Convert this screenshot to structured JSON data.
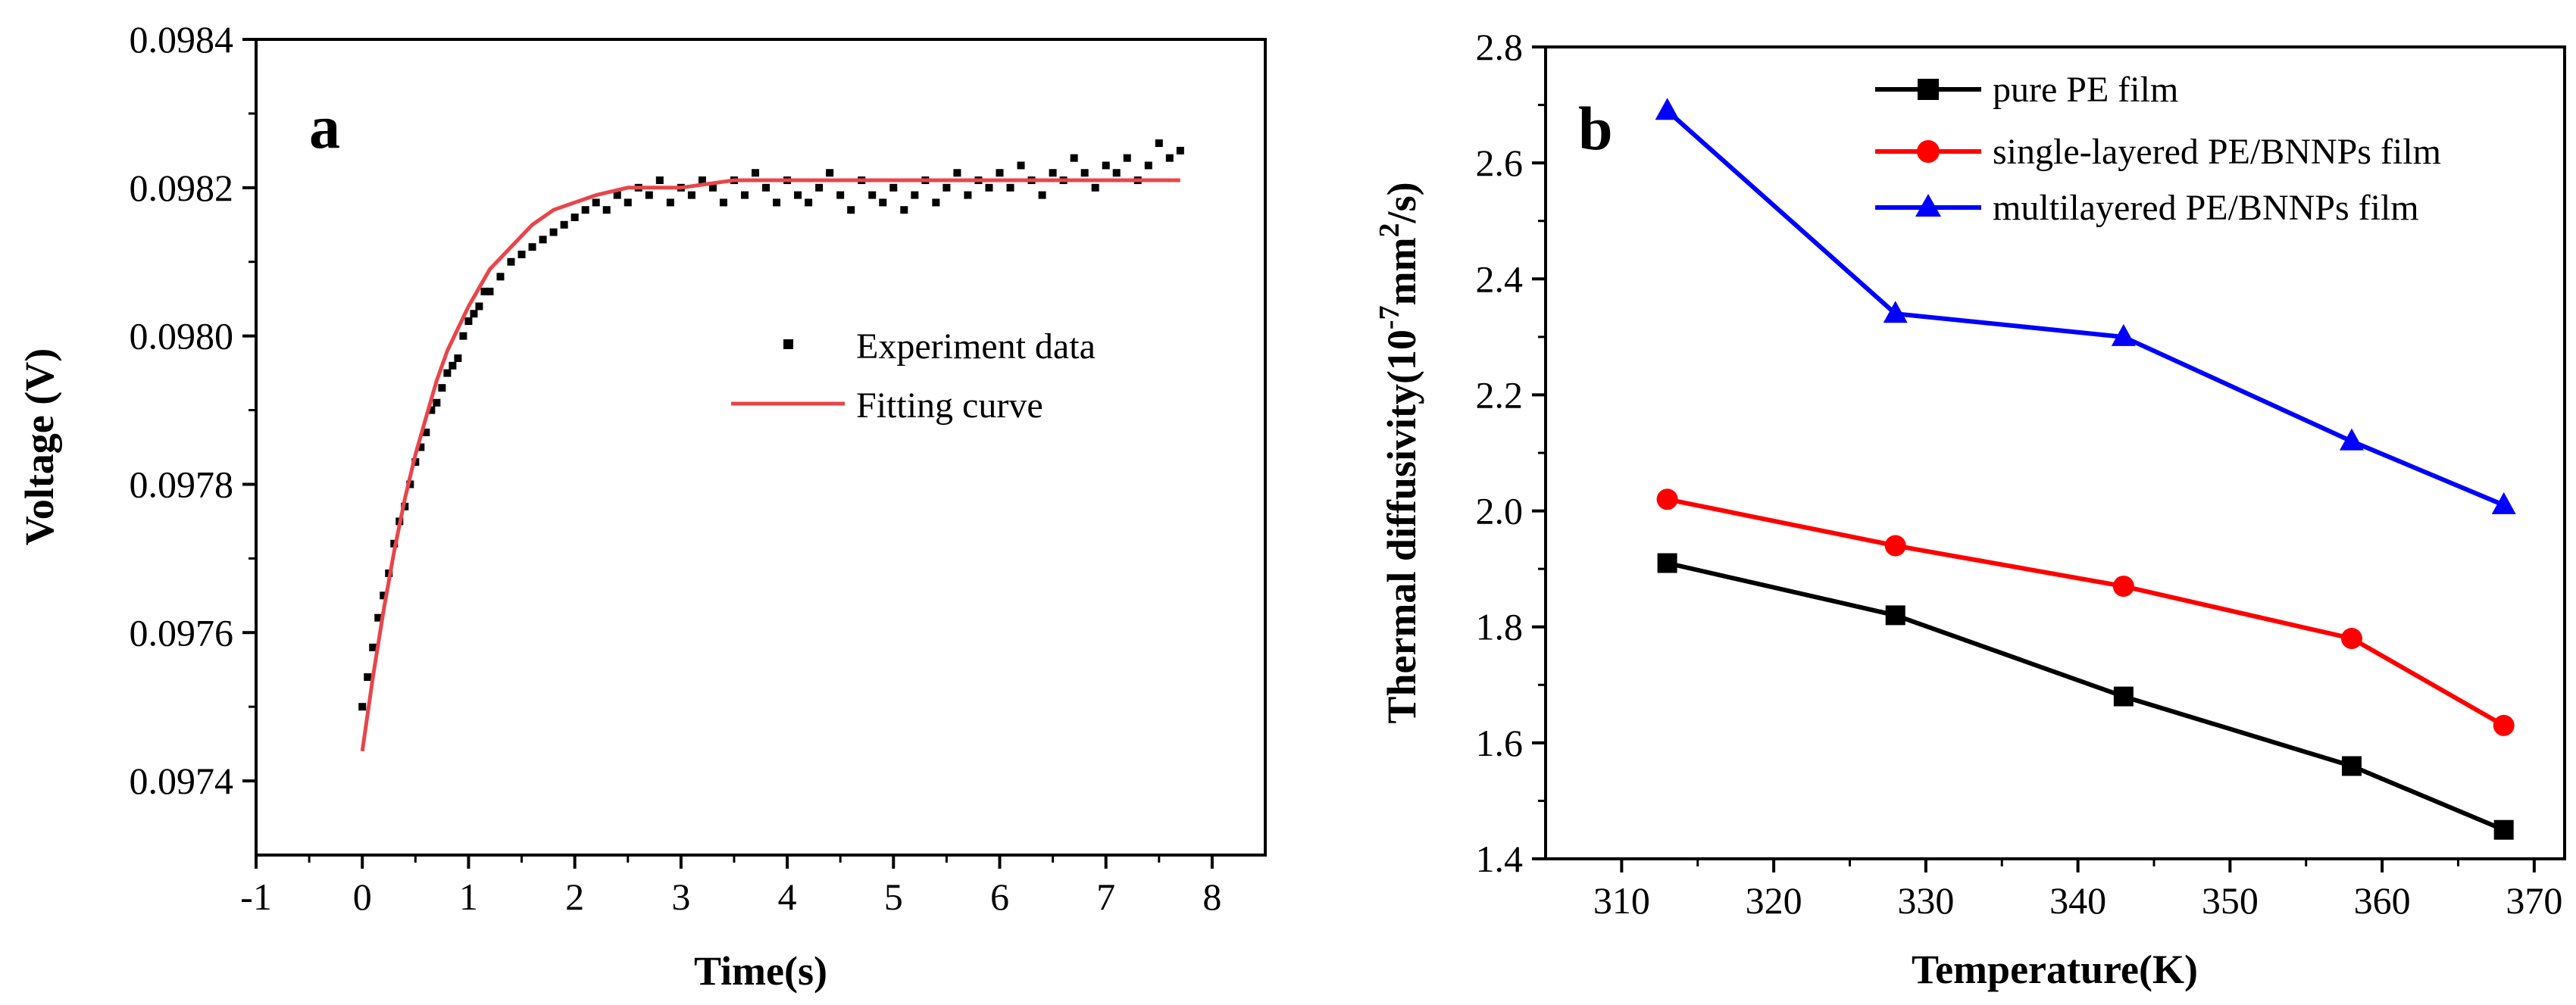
{
  "figure": {
    "panel_a_label": "a",
    "panel_b_label": "b"
  },
  "chart_data": [
    {
      "id": "a",
      "type": "scatter",
      "title": "",
      "xlabel": "Time(s)",
      "ylabel": "Voltage (V)",
      "xlim": [
        -1,
        8.5
      ],
      "ylim": [
        0.0973,
        0.0984
      ],
      "xticks": [
        -1,
        0,
        1,
        2,
        3,
        4,
        5,
        6,
        7,
        8
      ],
      "xtick_labels": [
        "-1",
        "0",
        "1",
        "2",
        "3",
        "4",
        "5",
        "6",
        "7",
        "8"
      ],
      "yticks": [
        0.0974,
        0.0976,
        0.0978,
        0.098,
        0.0982,
        0.0984
      ],
      "ytick_labels": [
        "0.0974",
        "0.0976",
        "0.0978",
        "0.0980",
        "0.0982",
        "0.0984"
      ],
      "legend": [
        "Experiment data",
        "Fitting curve"
      ],
      "series": [
        {
          "name": "Experiment data",
          "kind": "scatter",
          "color": "#000000",
          "x": [
            0.0,
            0.05,
            0.1,
            0.15,
            0.2,
            0.25,
            0.3,
            0.35,
            0.4,
            0.45,
            0.5,
            0.55,
            0.6,
            0.65,
            0.7,
            0.75,
            0.8,
            0.85,
            0.9,
            0.95,
            1.0,
            1.05,
            1.1,
            1.15,
            1.2,
            1.3,
            1.4,
            1.5,
            1.6,
            1.7,
            1.8,
            1.9,
            2.0,
            2.1,
            2.2,
            2.3,
            2.4,
            2.5,
            2.6,
            2.7,
            2.8,
            2.9,
            3.0,
            3.1,
            3.2,
            3.3,
            3.4,
            3.5,
            3.6,
            3.7,
            3.8,
            3.9,
            4.0,
            4.1,
            4.2,
            4.3,
            4.4,
            4.5,
            4.6,
            4.7,
            4.8,
            4.9,
            5.0,
            5.1,
            5.2,
            5.3,
            5.4,
            5.5,
            5.6,
            5.7,
            5.8,
            5.9,
            6.0,
            6.1,
            6.2,
            6.3,
            6.4,
            6.5,
            6.6,
            6.7,
            6.8,
            6.9,
            7.0,
            7.1,
            7.2,
            7.3,
            7.4,
            7.5,
            7.6,
            7.7
          ],
          "y": [
            0.0975,
            0.09754,
            0.09758,
            0.09762,
            0.09765,
            0.09768,
            0.09772,
            0.09775,
            0.09777,
            0.0978,
            0.09783,
            0.09785,
            0.09787,
            0.0979,
            0.09791,
            0.09793,
            0.09795,
            0.09796,
            0.09797,
            0.098,
            0.09802,
            0.09803,
            0.09804,
            0.09806,
            0.09806,
            0.09808,
            0.0981,
            0.09811,
            0.09812,
            0.09813,
            0.09814,
            0.09815,
            0.09816,
            0.09817,
            0.09818,
            0.09817,
            0.09819,
            0.09818,
            0.0982,
            0.09819,
            0.09821,
            0.09818,
            0.0982,
            0.09819,
            0.09821,
            0.0982,
            0.09818,
            0.09821,
            0.09819,
            0.09822,
            0.0982,
            0.09818,
            0.09821,
            0.09819,
            0.09818,
            0.0982,
            0.09822,
            0.09819,
            0.09817,
            0.09821,
            0.09819,
            0.09818,
            0.0982,
            0.09817,
            0.09819,
            0.09821,
            0.09818,
            0.0982,
            0.09822,
            0.09819,
            0.09821,
            0.0982,
            0.09822,
            0.0982,
            0.09823,
            0.09821,
            0.09819,
            0.09822,
            0.09821,
            0.09824,
            0.09822,
            0.0982,
            0.09823,
            0.09822,
            0.09824,
            0.09821,
            0.09823,
            0.09826,
            0.09824,
            0.09825
          ]
        },
        {
          "name": "Fitting curve",
          "kind": "line",
          "color": "#e8454a",
          "x": [
            0.0,
            0.1,
            0.2,
            0.3,
            0.4,
            0.5,
            0.6,
            0.7,
            0.8,
            0.9,
            1.0,
            1.2,
            1.4,
            1.6,
            1.8,
            2.0,
            2.2,
            2.5,
            2.8,
            3.0,
            3.5,
            4.0,
            5.0,
            6.0,
            7.0,
            7.7
          ],
          "y": [
            0.09744,
            0.09754,
            0.09763,
            0.09771,
            0.09778,
            0.09784,
            0.09789,
            0.09794,
            0.09798,
            0.09801,
            0.09804,
            0.09809,
            0.09812,
            0.09815,
            0.09817,
            0.09818,
            0.09819,
            0.0982,
            0.0982,
            0.0982,
            0.09821,
            0.09821,
            0.09821,
            0.09821,
            0.09821,
            0.09821
          ]
        }
      ]
    },
    {
      "id": "b",
      "type": "line",
      "title": "",
      "xlabel": "Temperature(K)",
      "ylabel_main": "Thermal diffusivity(10",
      "ylabel_sup1": "-7",
      "ylabel_mid": "mm",
      "ylabel_sup2": "2",
      "ylabel_end": "/s)",
      "xlim": [
        305,
        372
      ],
      "ylim": [
        1.4,
        2.8
      ],
      "xticks": [
        310,
        320,
        330,
        340,
        350,
        360,
        370
      ],
      "xtick_labels": [
        "310",
        "320",
        "330",
        "340",
        "350",
        "360",
        "370"
      ],
      "yticks": [
        1.4,
        1.6,
        1.8,
        2.0,
        2.2,
        2.4,
        2.6,
        2.8
      ],
      "ytick_labels": [
        "1.4",
        "1.6",
        "1.8",
        "2.0",
        "2.2",
        "2.4",
        "2.6",
        "2.8"
      ],
      "categories": [
        313,
        328,
        343,
        358,
        368
      ],
      "legend": [
        "pure PE film",
        "single-layered PE/BNNPs film",
        "multilayered PE/BNNPs film"
      ],
      "series": [
        {
          "name": "pure PE film",
          "marker": "square",
          "color": "#000000",
          "values": [
            1.91,
            1.82,
            1.68,
            1.56,
            1.45
          ]
        },
        {
          "name": "single-layered PE/BNNPs film",
          "marker": "circle",
          "color": "#ff0000",
          "values": [
            2.02,
            1.94,
            1.87,
            1.78,
            1.63
          ]
        },
        {
          "name": "multilayered PE/BNNPs film",
          "marker": "triangle",
          "color": "#0000ff",
          "values": [
            2.69,
            2.34,
            2.3,
            2.12,
            2.01
          ]
        }
      ]
    }
  ]
}
